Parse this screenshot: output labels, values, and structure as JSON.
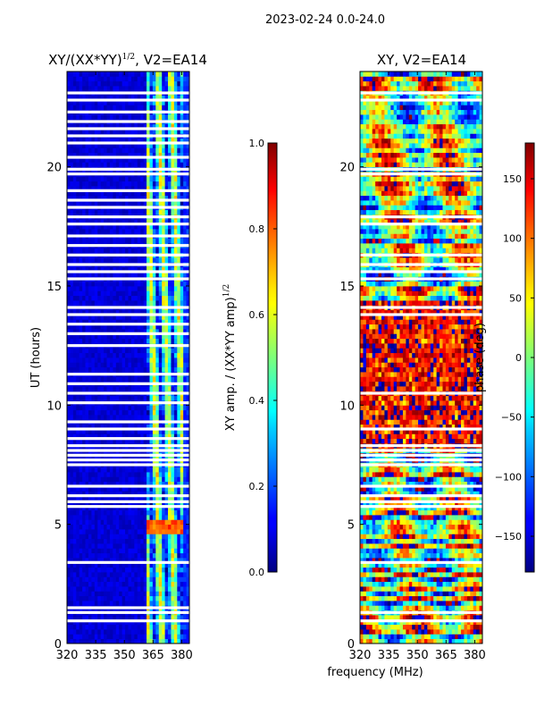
{
  "suptitle": "2023-02-24 0.0-24.0",
  "chart_data": [
    {
      "type": "heatmap",
      "title_main": "XY/(XX*YY)",
      "title_exp": "1/2",
      "title_tail": ", V2=EA14",
      "ylabel": "UT (hours)",
      "xlim": [
        320,
        384
      ],
      "ylim": [
        0,
        24
      ],
      "xticks": [
        320,
        335,
        350,
        365,
        380
      ],
      "yticks": [
        0,
        5,
        10,
        15,
        20
      ],
      "colorbar": {
        "label_main": "XY amp. / (XX*YY amp)",
        "label_exp": "1/2",
        "range": [
          0.0,
          1.0
        ],
        "ticks": [
          "0.0",
          "0.2",
          "0.4",
          "0.6",
          "0.8",
          "1.0"
        ],
        "colormap": "jet"
      },
      "flag_gaps_hours": [
        0.95,
        1.3,
        1.5,
        3.4,
        5.75,
        5.95,
        6.2,
        6.6,
        7.5,
        7.7,
        7.9,
        8.1,
        8.3,
        8.6,
        9.0,
        9.3,
        10.1,
        10.5,
        10.9,
        11.3,
        12.5,
        13.0,
        13.4,
        13.8,
        14.1,
        15.3,
        15.6,
        15.9,
        16.3,
        16.7,
        17.1,
        17.6,
        17.9,
        18.3,
        18.6,
        19.0,
        19.7,
        19.9,
        20.4,
        21.0,
        21.3,
        21.6,
        21.9,
        22.3,
        22.8,
        23.1
      ]
    },
    {
      "type": "heatmap",
      "title_main": "XY, V2=EA14",
      "xlabel": "frequency (MHz)",
      "xlim": [
        320,
        384
      ],
      "ylim": [
        0,
        24
      ],
      "xticks": [
        320,
        335,
        350,
        365,
        380
      ],
      "yticks": [
        0,
        5,
        10,
        15,
        20
      ],
      "colorbar": {
        "label_main": "phase (deg)",
        "range": [
          -180,
          180
        ],
        "ticks": [
          "−150",
          "−100",
          "−50",
          "0",
          "50",
          "100",
          "150"
        ],
        "colormap": "jet"
      },
      "flag_gaps_hours": [
        0.95,
        1.3,
        3.4,
        5.75,
        5.95,
        6.2,
        6.6,
        7.5,
        7.7,
        7.9,
        8.1,
        8.3,
        9.0,
        10.5,
        13.8,
        14.1,
        15.3,
        15.6,
        15.9,
        16.3,
        17.6,
        17.9,
        19.7,
        19.9,
        22.8,
        23.1
      ]
    }
  ]
}
